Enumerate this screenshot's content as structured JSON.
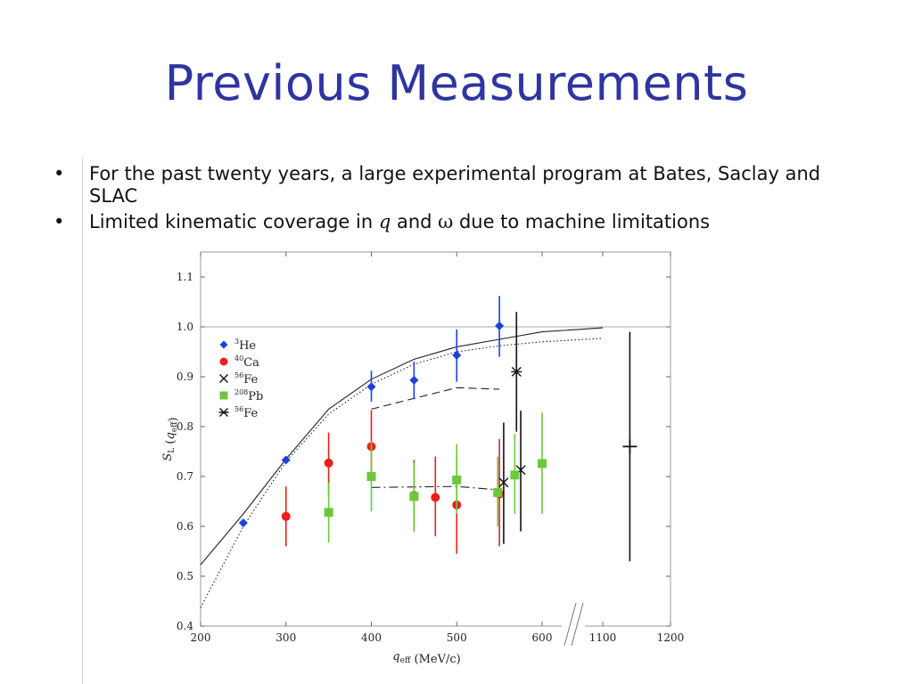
{
  "slide": {
    "title": "Previous Measurements",
    "bullets": [
      {
        "parts": [
          {
            "text": "For the past twenty years, a large experimental program at Bates, Saclay and SLAC",
            "style": "normal"
          }
        ]
      },
      {
        "parts": [
          {
            "text": "Limited kinematic coverage in ",
            "style": "normal"
          },
          {
            "text": "q",
            "style": "italic"
          },
          {
            "text": " and ",
            "style": "normal"
          },
          {
            "text": "ω",
            "style": "serif"
          },
          {
            "text": " due to machine limitations",
            "style": "normal"
          }
        ]
      }
    ],
    "bullet_glyph": "•"
  },
  "chart_data": {
    "type": "scatter",
    "title": "",
    "xlabel": "q_eff (MeV/c)",
    "ylabel": "S_L (q_eff)",
    "xlim": [
      200,
      1200
    ],
    "ylim": [
      0.4,
      1.15
    ],
    "x_axis_break": "between 600 and 1100",
    "x_ticks": [
      "200",
      "300",
      "400",
      "500",
      "600",
      "1100",
      "1200"
    ],
    "y_ticks": [
      "0.4",
      "0.5",
      "0.6",
      "0.7",
      "0.8",
      "0.9",
      "1.0",
      "1.1"
    ],
    "legend_position": "top-left",
    "reference_line": {
      "y": 1.0
    },
    "series": [
      {
        "name": "3He",
        "marker": "diamond",
        "color": "#1f3fdc",
        "points": [
          {
            "x": 250,
            "y": 0.607,
            "lo": 0.607,
            "hi": 0.607
          },
          {
            "x": 300,
            "y": 0.733,
            "lo": 0.733,
            "hi": 0.733
          },
          {
            "x": 400,
            "y": 0.88,
            "lo": 0.85,
            "hi": 0.912
          },
          {
            "x": 450,
            "y": 0.893,
            "lo": 0.855,
            "hi": 0.93
          },
          {
            "x": 500,
            "y": 0.943,
            "lo": 0.89,
            "hi": 0.995
          },
          {
            "x": 550,
            "y": 1.002,
            "lo": 0.94,
            "hi": 1.062
          }
        ]
      },
      {
        "name": "40Ca",
        "marker": "circle",
        "color": "#e8201e",
        "points": [
          {
            "x": 300,
            "y": 0.62,
            "lo": 0.56,
            "hi": 0.68
          },
          {
            "x": 350,
            "y": 0.727,
            "lo": 0.665,
            "hi": 0.788
          },
          {
            "x": 400,
            "y": 0.76,
            "lo": 0.69,
            "hi": 0.833
          },
          {
            "x": 450,
            "y": 0.662,
            "lo": 0.59,
            "hi": 0.733
          },
          {
            "x": 475,
            "y": 0.658,
            "lo": 0.58,
            "hi": 0.74
          },
          {
            "x": 500,
            "y": 0.643,
            "lo": 0.545,
            "hi": 0.74
          },
          {
            "x": 550,
            "y": 0.665,
            "lo": 0.56,
            "hi": 0.775
          }
        ]
      },
      {
        "name": "56Fe",
        "marker": "x",
        "color": "#111111",
        "points": [
          {
            "x": 555,
            "y": 0.688,
            "lo": 0.565,
            "hi": 0.808
          },
          {
            "x": 575,
            "y": 0.713,
            "lo": 0.59,
            "hi": 0.832
          }
        ]
      },
      {
        "name": "208Pb",
        "marker": "square",
        "color": "#6cc83a",
        "points": [
          {
            "x": 350,
            "y": 0.628,
            "lo": 0.568,
            "hi": 0.688
          },
          {
            "x": 400,
            "y": 0.7,
            "lo": 0.63,
            "hi": 0.77
          },
          {
            "x": 450,
            "y": 0.66,
            "lo": 0.592,
            "hi": 0.728
          },
          {
            "x": 500,
            "y": 0.693,
            "lo": 0.625,
            "hi": 0.765
          },
          {
            "x": 548,
            "y": 0.668,
            "lo": 0.6,
            "hi": 0.74
          },
          {
            "x": 568,
            "y": 0.703,
            "lo": 0.625,
            "hi": 0.785
          },
          {
            "x": 600,
            "y": 0.726,
            "lo": 0.625,
            "hi": 0.828
          }
        ]
      },
      {
        "name": "56Fe",
        "marker": "asterisk",
        "color": "#111111",
        "points": [
          {
            "x": 570,
            "y": 0.91,
            "lo": 0.79,
            "hi": 1.03
          }
        ]
      },
      {
        "name": "",
        "marker": "plus",
        "color": "#111111",
        "points": [
          {
            "x": 1140,
            "y": 0.76,
            "lo": 0.53,
            "hi": 0.99
          }
        ]
      }
    ],
    "curves": [
      {
        "style": "solid",
        "points": [
          [
            200,
            0.523
          ],
          [
            250,
            0.625
          ],
          [
            300,
            0.735
          ],
          [
            350,
            0.835
          ],
          [
            400,
            0.895
          ],
          [
            450,
            0.935
          ],
          [
            500,
            0.96
          ],
          [
            550,
            0.975
          ],
          [
            600,
            0.99
          ],
          [
            1100,
            0.998
          ]
        ]
      },
      {
        "style": "dotted",
        "points": [
          [
            200,
            0.437
          ],
          [
            250,
            0.6
          ],
          [
            300,
            0.73
          ],
          [
            350,
            0.825
          ],
          [
            400,
            0.885
          ],
          [
            450,
            0.925
          ],
          [
            500,
            0.95
          ],
          [
            550,
            0.962
          ],
          [
            600,
            0.97
          ],
          [
            1100,
            0.977
          ]
        ]
      },
      {
        "style": "dashed",
        "points": [
          [
            400,
            0.835
          ],
          [
            500,
            0.878
          ],
          [
            550,
            0.875
          ]
        ]
      },
      {
        "style": "dashdot",
        "points": [
          [
            400,
            0.678
          ],
          [
            500,
            0.68
          ],
          [
            550,
            0.673
          ]
        ]
      }
    ]
  }
}
